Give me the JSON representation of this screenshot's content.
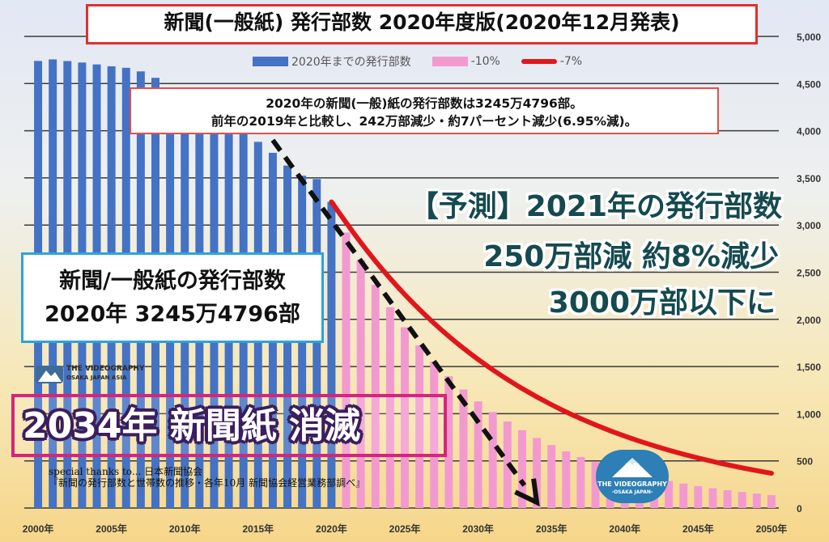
{
  "title": "新聞(一般紙) 発行部数 2020年度版(2020年12月発表)",
  "legend": [
    {
      "label": "2020年までの発行部数",
      "color": "#4472c4"
    },
    {
      "label": "-10%",
      "color": "#f29ad0"
    },
    {
      "label": "-7%",
      "color": "#e0161b"
    }
  ],
  "note": {
    "line1": "2020年の新聞(一般)紙の発行部数は3245万4796部。",
    "line2": "前年の2019年と比較し、242万部減少・約7パーセント減少(6.95%減)。"
  },
  "prediction": {
    "line1": "【予測】2021年の発行部数",
    "line2": "250万部減 約8%減少",
    "line3": "3000万部以下に"
  },
  "circulation_box": {
    "line1": "新聞/一般紙の発行部数",
    "line2": "2020年  3245万4796部"
  },
  "headline": "2034年 新聞紙 消滅",
  "thanks": {
    "line1": "special thanks to... 日本新聞協会",
    "line2": "『新聞の発行部数と世帯数の推移・各年10月 新聞協会経営業務部調べ』"
  },
  "logo_left": {
    "line1": "THE VIDEOGRAPHY",
    "line2": "OSAKA JAPAN ASIA"
  },
  "logo_right": {
    "line1": "THE VIDEOGRAPHY",
    "line2": "-OSAKA JAPAN-"
  },
  "chart_data": {
    "type": "bar",
    "x_ticks": [
      "2000年",
      "2005年",
      "2010年",
      "2015年",
      "2020年",
      "2025年",
      "2030年",
      "2035年",
      "2040年",
      "2045年",
      "2050年"
    ],
    "y_ticks": [
      "5,000",
      "4,500",
      "4,000",
      "3,500",
      "3,000",
      "2,500",
      "2,000",
      "1,500",
      "1,000",
      "500",
      "0"
    ],
    "ylim": [
      0,
      5000
    ],
    "xlim": [
      1999.5,
      2050.5
    ],
    "series": [
      {
        "name": "2020年までの発行部数",
        "color": "#4472c4",
        "x": [
          2000,
          2001,
          2002,
          2003,
          2004,
          2005,
          2006,
          2007,
          2008,
          2009,
          2010,
          2011,
          2012,
          2013,
          2014,
          2015,
          2016,
          2017,
          2018,
          2019,
          2020
        ],
        "values": [
          4740,
          4756,
          4739,
          4723,
          4703,
          4683,
          4667,
          4629,
          4561,
          4439,
          4366,
          4271,
          4182,
          4142,
          4003,
          3882,
          3766,
          3631,
          3523,
          3487,
          3245
        ]
      },
      {
        "name": "-10%",
        "color": "#f29ad0",
        "x": [
          2021,
          2022,
          2023,
          2024,
          2025,
          2026,
          2027,
          2028,
          2029,
          2030,
          2031,
          2032,
          2033,
          2034,
          2035,
          2036,
          2037,
          2038,
          2039,
          2040,
          2041,
          2042,
          2043,
          2044,
          2045,
          2046,
          2047,
          2048,
          2049,
          2050
        ],
        "values": [
          2921,
          2629,
          2366,
          2129,
          1916,
          1725,
          1552,
          1397,
          1257,
          1131,
          1018,
          917,
          825,
          742,
          668,
          601,
          541,
          487,
          438,
          394,
          355,
          319,
          287,
          259,
          233,
          210,
          189,
          170,
          153,
          137
        ]
      },
      {
        "name": "-7%",
        "color": "#e0161b",
        "type": "line",
        "x": [
          2020,
          2022,
          2024,
          2026,
          2028,
          2030,
          2032,
          2034,
          2036,
          2038,
          2040,
          2042,
          2044,
          2046,
          2048,
          2050
        ],
        "values": [
          3245,
          2807,
          2428,
          2100,
          1816,
          1571,
          1359,
          1175,
          1016,
          879,
          760,
          658,
          569,
          492,
          425,
          368
        ]
      }
    ],
    "trend_arrow": {
      "from": [
        2016,
        3900
      ],
      "to": [
        2034,
        60
      ],
      "style": "dashed"
    }
  }
}
